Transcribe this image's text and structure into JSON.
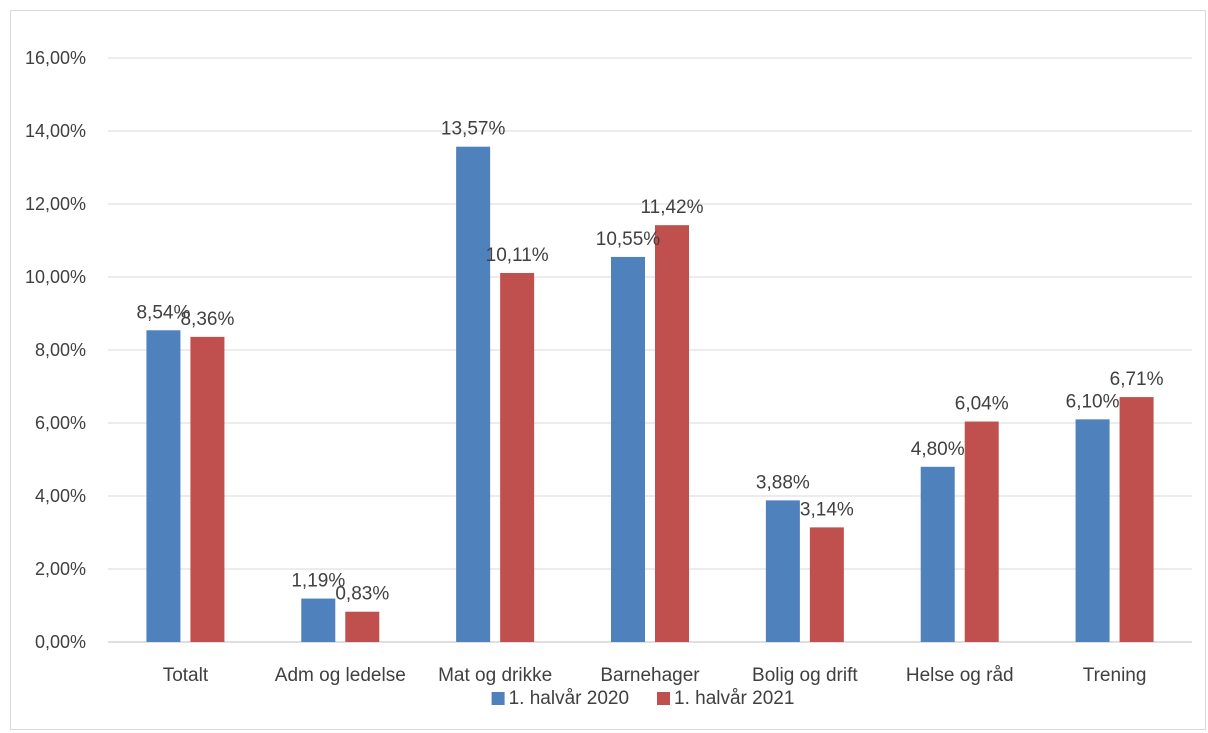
{
  "chart_data": {
    "type": "bar",
    "categories": [
      "Totalt",
      "Adm og ledelse",
      "Mat og drikke",
      "Barnehager",
      "Bolig og drift",
      "Helse og råd",
      "Trening"
    ],
    "series": [
      {
        "name": "1. halvår 2020",
        "color": "#4f81bd",
        "values": [
          8.54,
          1.19,
          13.57,
          10.55,
          3.88,
          4.8,
          6.1
        ],
        "labels": [
          "8,54%",
          "1,19%",
          "13,57%",
          "10,55%",
          "3,88%",
          "4,80%",
          "6,10%"
        ]
      },
      {
        "name": "1. halvår 2021",
        "color": "#c0504d",
        "values": [
          8.36,
          0.83,
          10.11,
          11.42,
          3.14,
          6.04,
          6.71
        ],
        "labels": [
          "8,36%",
          "0,83%",
          "10,11%",
          "11,42%",
          "3,14%",
          "6,04%",
          "6,71%"
        ]
      }
    ],
    "ylim": [
      0,
      16
    ],
    "yticks": [
      0,
      2,
      4,
      6,
      8,
      10,
      12,
      14,
      16
    ],
    "ytick_labels": [
      "0,00%",
      "2,00%",
      "4,00%",
      "6,00%",
      "8,00%",
      "10,00%",
      "12,00%",
      "14,00%",
      "16,00%"
    ],
    "grid": true,
    "legend_position": "bottom"
  }
}
